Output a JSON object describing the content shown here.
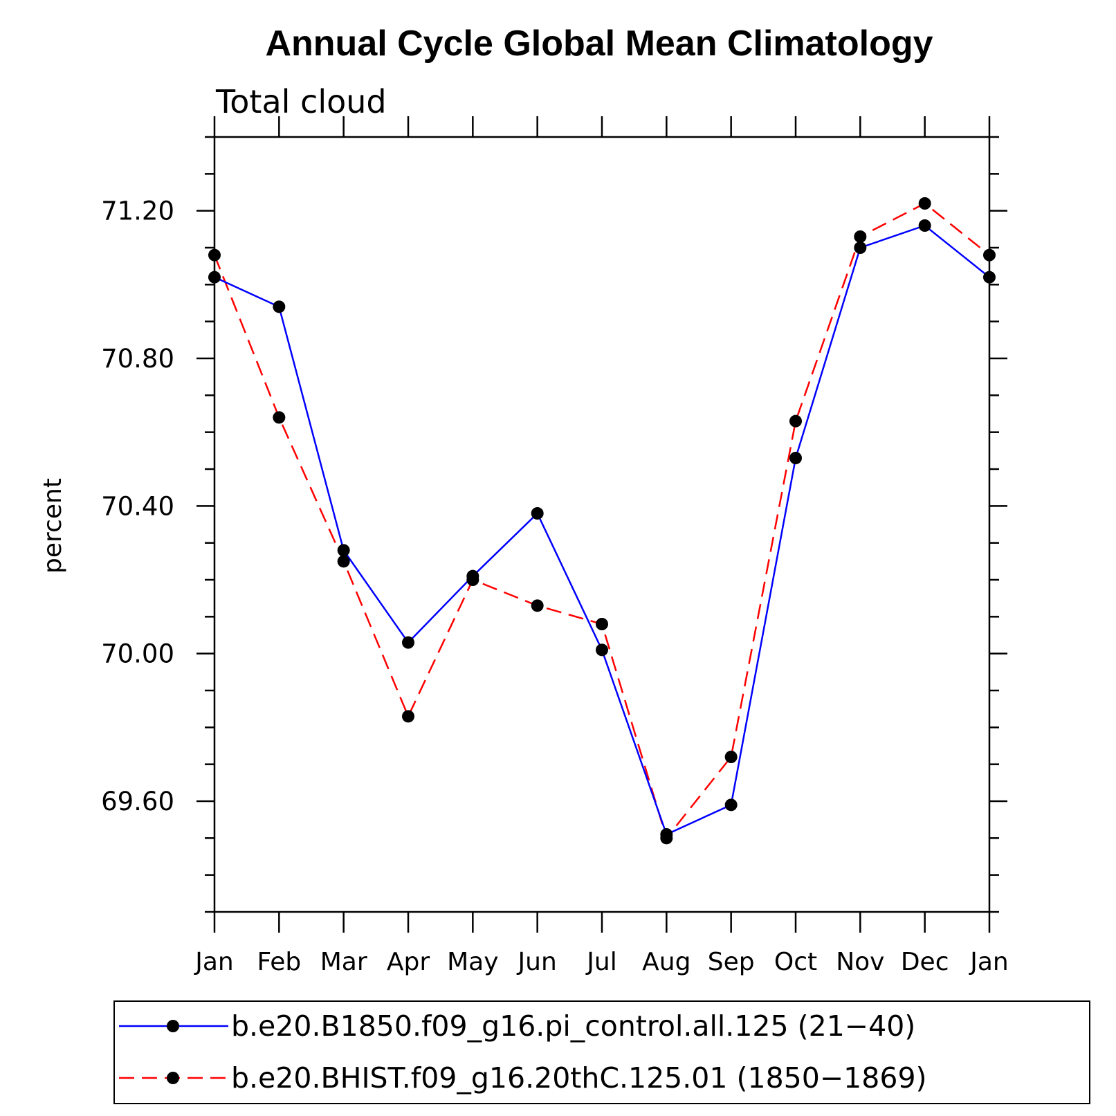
{
  "chart_data": {
    "type": "line",
    "title": "Annual Cycle Global Mean Climatology",
    "subtitle": "Total cloud",
    "xlabel": "",
    "ylabel": "percent",
    "categories": [
      "Jan",
      "Feb",
      "Mar",
      "Apr",
      "May",
      "Jun",
      "Jul",
      "Aug",
      "Sep",
      "Oct",
      "Nov",
      "Dec",
      "Jan"
    ],
    "ylim": [
      69.3,
      71.4
    ],
    "yticks": [
      69.6,
      70.0,
      70.4,
      70.8,
      71.2
    ],
    "ytick_labels": [
      "69.60",
      "70.00",
      "70.40",
      "70.80",
      "71.20"
    ],
    "yminor_step": 0.1,
    "grid": false,
    "legend_position": "bottom",
    "series": [
      {
        "name": "b.e20.B1850.f09_g16.pi_control.all.125 (21−40)",
        "color": "#0000ff",
        "line_style": "solid",
        "marker": "filled-circle",
        "values": [
          71.02,
          70.94,
          70.28,
          70.03,
          70.21,
          70.38,
          70.01,
          69.51,
          69.59,
          70.53,
          71.1,
          71.16,
          71.02
        ]
      },
      {
        "name": "b.e20.BHIST.f09_g16.20thC.125.01 (1850−1869)",
        "color": "#ff0000",
        "line_style": "dashed",
        "marker": "filled-circle",
        "values": [
          71.08,
          70.64,
          70.25,
          69.83,
          70.2,
          70.13,
          70.08,
          69.5,
          69.72,
          70.63,
          71.13,
          71.22,
          71.08
        ]
      }
    ]
  }
}
